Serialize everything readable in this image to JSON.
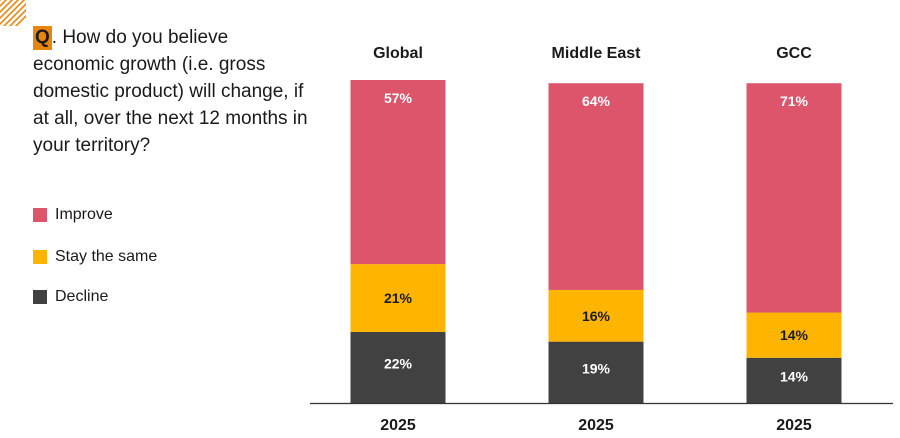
{
  "question": {
    "marker": "Q",
    "text": ". How do you believe economic growth (i.e. gross domestic product) will change, if at all, over the next 12 months in your territory?"
  },
  "legend": [
    {
      "label": "Improve",
      "color": "#DC556B"
    },
    {
      "label": "Stay the same",
      "color": "#FFB500"
    },
    {
      "label": "Decline",
      "color": "#414141"
    }
  ],
  "chart_data": {
    "type": "bar",
    "stacked": true,
    "percent": true,
    "categories": [
      "Global",
      "Middle East",
      "GCC"
    ],
    "x_labels": [
      "2025",
      "2025",
      "2025"
    ],
    "series": [
      {
        "name": "Decline",
        "color": "#414141",
        "label_color": "#ffffff",
        "values": [
          22,
          19,
          14
        ]
      },
      {
        "name": "Stay the same",
        "color": "#FFB500",
        "label_color": "#1a1a1a",
        "values": [
          21,
          16,
          14
        ]
      },
      {
        "name": "Improve",
        "color": "#DC556B",
        "label_color": "#ffffff",
        "values": [
          57,
          64,
          71
        ]
      }
    ],
    "value_labels": {
      "Decline": [
        "22%",
        "19%",
        "14%"
      ],
      "Stay the same": [
        "21%",
        "16%",
        "14%"
      ],
      "Improve": [
        "57%",
        "64%",
        "71%"
      ]
    },
    "ylim": [
      0,
      100
    ],
    "grid": false,
    "legend_position": "left"
  }
}
